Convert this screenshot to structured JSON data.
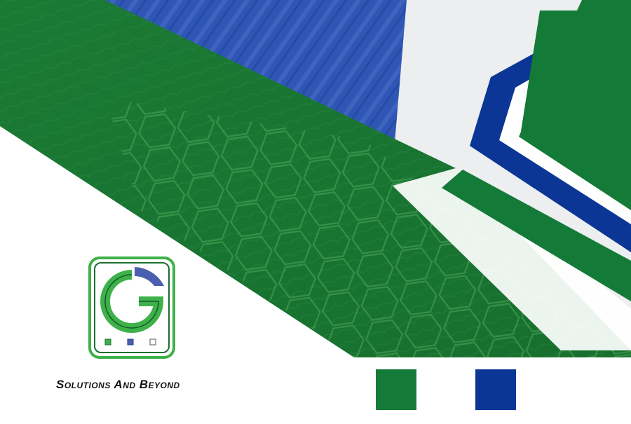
{
  "brand": {
    "tagline": "Solutions And Beyond",
    "logo_letter": "G"
  },
  "colors": {
    "green": "#137a37",
    "green_bright": "#3fb14a",
    "blue": "#0b3696",
    "blue_mid": "#2f56b4",
    "white": "#ffffff",
    "light_gray": "#eceeef"
  },
  "swatches": [
    {
      "name": "green-swatch",
      "color": "#137a37"
    },
    {
      "name": "blue-swatch",
      "color": "#0b3696"
    }
  ]
}
